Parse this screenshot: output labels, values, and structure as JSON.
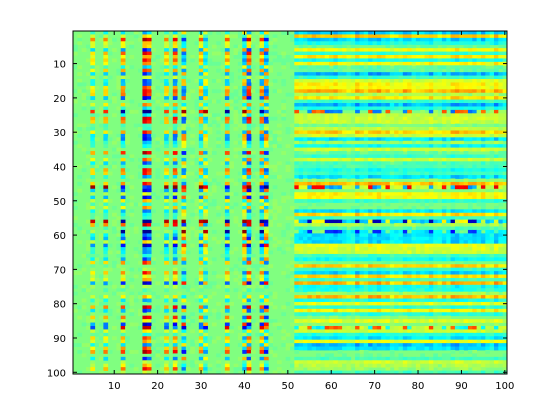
{
  "chart_data": {
    "type": "heatmap",
    "title": "",
    "xlabel": "",
    "ylabel": "",
    "rows": 100,
    "cols": 100,
    "x_range": [
      1,
      100
    ],
    "y_range": [
      1,
      100
    ],
    "y_direction": "top-to-bottom",
    "x_ticks": [
      10,
      20,
      30,
      40,
      50,
      60,
      70,
      80,
      90,
      100
    ],
    "x_tick_labels": [
      "10",
      "20",
      "30",
      "40",
      "50",
      "60",
      "70",
      "80",
      "90",
      "100"
    ],
    "y_ticks": [
      10,
      20,
      30,
      40,
      50,
      60,
      70,
      80,
      90,
      100
    ],
    "y_tick_labels": [
      "10",
      "20",
      "30",
      "40",
      "50",
      "60",
      "70",
      "80",
      "90",
      "100"
    ],
    "colormap": "jet",
    "colormap_stops": [
      "#00008f",
      "#0000ff",
      "#00ffff",
      "#ffff00",
      "#ff0000",
      "#800000"
    ],
    "background_value": 0,
    "grid": false,
    "legend": "none",
    "column_patterns": [
      {
        "col": 5,
        "kind": "stripe",
        "sign": "pos",
        "amp": 0.35
      },
      {
        "col": 8,
        "kind": "stripe",
        "sign": "pos",
        "amp": 0.4
      },
      {
        "col": 12,
        "kind": "stripe",
        "sign": "pos",
        "amp": 0.55
      },
      {
        "col": 17,
        "kind": "stripe",
        "sign": "pos",
        "amp": 0.9
      },
      {
        "col": 18,
        "kind": "stripe",
        "sign": "pos",
        "amp": 0.7
      },
      {
        "col": 22,
        "kind": "stripe",
        "sign": "pos",
        "amp": 0.4
      },
      {
        "col": 24,
        "kind": "stripe",
        "sign": "pos",
        "amp": 0.65
      },
      {
        "col": 26,
        "kind": "stripe",
        "sign": "neg",
        "amp": 0.55
      },
      {
        "col": 30,
        "kind": "stripe",
        "sign": "pos",
        "amp": 0.45
      },
      {
        "col": 31,
        "kind": "stripe",
        "sign": "neg",
        "amp": 0.35
      },
      {
        "col": 36,
        "kind": "stripe",
        "sign": "pos",
        "amp": 0.5
      },
      {
        "col": 40,
        "kind": "stripe",
        "sign": "neg",
        "amp": 0.5
      },
      {
        "col": 41,
        "kind": "stripe",
        "sign": "pos",
        "amp": 0.75
      },
      {
        "col": 44,
        "kind": "stripe",
        "sign": "pos",
        "amp": 0.55
      },
      {
        "col": 45,
        "kind": "stripe",
        "sign": "neg",
        "amp": 0.6
      }
    ],
    "row_patterns": [
      {
        "row": 24,
        "amp": 0.7
      },
      {
        "row": 46,
        "amp": 0.8
      },
      {
        "row": 56,
        "amp": 0.85
      },
      {
        "row": 59,
        "amp": 0.45
      },
      {
        "row": 87,
        "amp": -0.55
      }
    ],
    "right_band": {
      "col_start": 52,
      "col_end": 100,
      "amp": 0.4
    }
  }
}
